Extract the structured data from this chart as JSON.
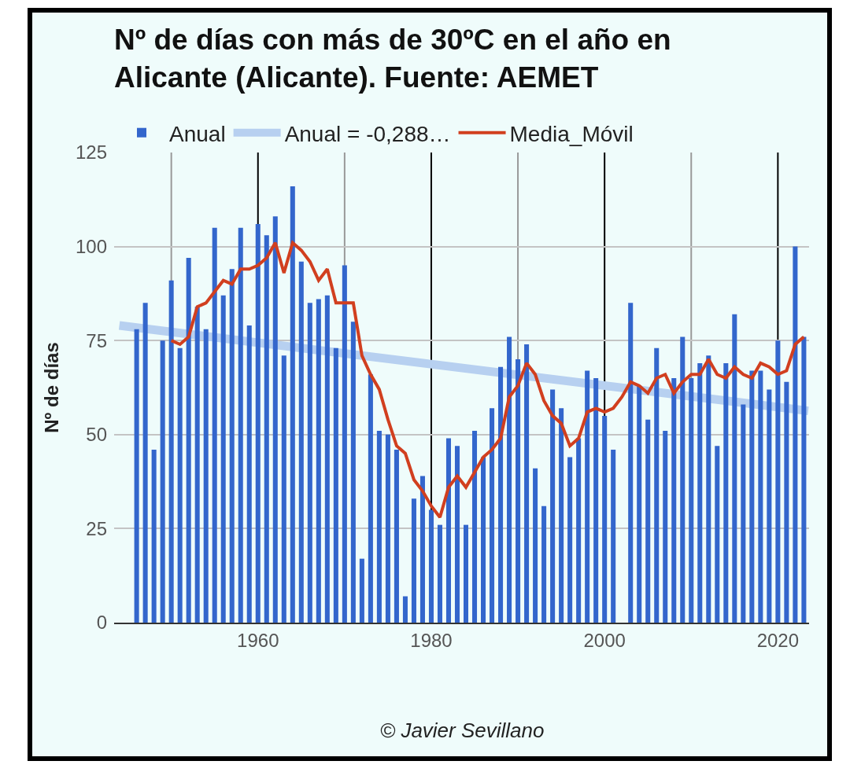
{
  "chart_data": {
    "type": "bar",
    "title": "Nº de días con más de 30ºC en el año en\nAlicante (Alicante). Fuente: AEMET",
    "ylabel": "Nº de días",
    "annotations": [
      "© Javier Sevillano"
    ],
    "x": [
      1946,
      1947,
      1948,
      1949,
      1950,
      1951,
      1952,
      1953,
      1954,
      1955,
      1956,
      1957,
      1958,
      1959,
      1960,
      1961,
      1962,
      1963,
      1964,
      1965,
      1966,
      1967,
      1968,
      1969,
      1970,
      1971,
      1972,
      1973,
      1974,
      1975,
      1976,
      1977,
      1978,
      1979,
      1980,
      1981,
      1982,
      1983,
      1984,
      1985,
      1986,
      1987,
      1988,
      1989,
      1990,
      1991,
      1992,
      1993,
      1994,
      1995,
      1996,
      1997,
      1998,
      1999,
      2000,
      2001,
      2002,
      2003,
      2004,
      2005,
      2006,
      2007,
      2008,
      2009,
      2010,
      2011,
      2012,
      2013,
      2014,
      2015,
      2016,
      2017,
      2018,
      2019,
      2020,
      2021,
      2022,
      2023
    ],
    "series": [
      {
        "name": "Anual",
        "color": "#3366cc",
        "values": [
          78,
          85,
          46,
          75,
          91,
          73,
          97,
          84,
          78,
          105,
          87,
          94,
          105,
          79,
          106,
          103,
          108,
          71,
          116,
          96,
          85,
          86,
          87,
          73,
          95,
          80,
          17,
          66,
          51,
          50,
          46,
          7,
          33,
          39,
          30,
          26,
          49,
          47,
          26,
          51,
          44,
          57,
          68,
          76,
          70,
          74,
          41,
          31,
          62,
          57,
          44,
          49,
          67,
          65,
          55,
          46,
          null,
          85,
          63,
          54,
          73,
          51,
          65,
          76,
          65,
          69,
          71,
          47,
          69,
          82,
          58,
          67,
          67,
          62,
          75,
          64,
          100,
          76
        ]
      },
      {
        "name": "Anual = -0,288…",
        "type": "line",
        "color": "#b7d0f0",
        "x": [
          1944,
          2023.5
        ],
        "values": [
          79,
          56.3
        ]
      },
      {
        "name": "Media_Móvil",
        "type": "line",
        "color": "#d13f1f",
        "x": [
          1950,
          1951,
          1952,
          1953,
          1954,
          1955,
          1956,
          1957,
          1958,
          1959,
          1960,
          1961,
          1962,
          1963,
          1964,
          1965,
          1966,
          1967,
          1968,
          1969,
          1970,
          1971,
          1972,
          1973,
          1974,
          1975,
          1976,
          1977,
          1978,
          1979,
          1980,
          1981,
          1982,
          1983,
          1984,
          1985,
          1986,
          1987,
          1988,
          1989,
          1990,
          1991,
          1992,
          1993,
          1994,
          1995,
          1996,
          1997,
          1998,
          1999,
          2000,
          2001,
          2002,
          2003,
          2004,
          2005,
          2006,
          2007,
          2008,
          2009,
          2010,
          2011,
          2012,
          2013,
          2014,
          2015,
          2016,
          2017,
          2018,
          2019,
          2020,
          2021,
          2022,
          2023
        ],
        "values": [
          75,
          74,
          76,
          84,
          85,
          88,
          91,
          90,
          94,
          94,
          95,
          97,
          101,
          93,
          101,
          99,
          96,
          91,
          94,
          85,
          85,
          85,
          71,
          66,
          62,
          54,
          47,
          45,
          38,
          35,
          31,
          28,
          36,
          39,
          36,
          40,
          44,
          46,
          49,
          60,
          63,
          69,
          66,
          59,
          55,
          53,
          47,
          49,
          56,
          57,
          56,
          57,
          60,
          64,
          63,
          61,
          65,
          66,
          61,
          64,
          66,
          66,
          70,
          66,
          65,
          68,
          66,
          65,
          69,
          68,
          66,
          67,
          74,
          76
        ]
      }
    ],
    "xlim": [
      1943.4,
      2023.6
    ],
    "xticks": [
      {
        "value": 1950,
        "label": null
      },
      1960,
      {
        "value": 1970,
        "label": null
      },
      1980,
      {
        "value": 1990,
        "label": null
      },
      2000,
      {
        "value": 2010,
        "label": null
      },
      2020
    ],
    "ylim": [
      0,
      125
    ],
    "yticks": [
      0,
      25,
      50,
      75,
      100,
      125
    ],
    "grid": true,
    "legend": "top",
    "line_style": "solid"
  }
}
